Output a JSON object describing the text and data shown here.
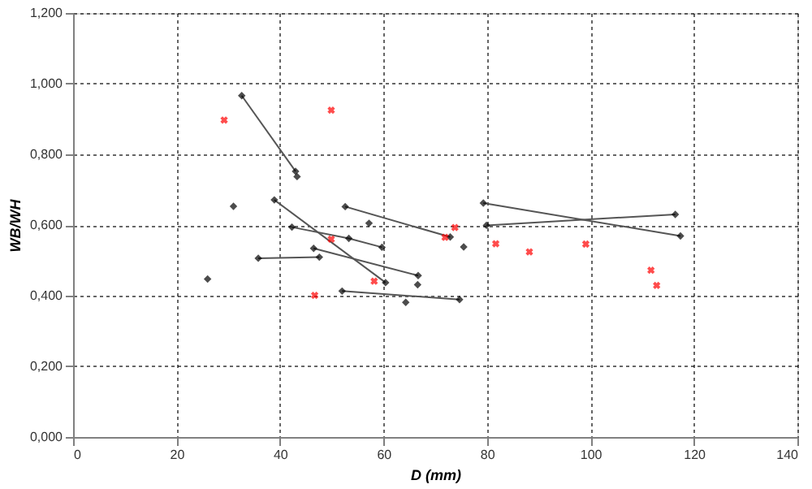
{
  "chart_data": {
    "type": "scatter",
    "xlabel": "D (mm)",
    "ylabel": "WB/WH",
    "xlim": [
      0,
      140
    ],
    "xticks": [
      0,
      20,
      40,
      60,
      80,
      100,
      120,
      140
    ],
    "ylim": [
      0,
      1.2
    ],
    "yticks": [
      {
        "value": 0,
        "label": "0,000"
      },
      {
        "value": 0.2,
        "label": "0,200"
      },
      {
        "value": 0.4,
        "label": "0,400"
      },
      {
        "value": 0.6,
        "label": "0,600"
      },
      {
        "value": 0.8,
        "label": "0,800"
      },
      {
        "value": 1.0,
        "label": "1,000"
      },
      {
        "value": 1.2,
        "label": "1,200"
      }
    ],
    "grid": true,
    "series": [
      {
        "type": "line",
        "color": "#555555",
        "line_style": "solid",
        "x": [
          32.6,
          43.0
        ],
        "values": [
          0.966,
          0.752
        ]
      },
      {
        "type": "line",
        "color": "#555555",
        "line_style": "solid",
        "x": [
          38.9,
          60.4
        ],
        "values": [
          0.671,
          0.437
        ]
      },
      {
        "type": "line",
        "color": "#555555",
        "line_style": "solid",
        "x": [
          42.3,
          53.3,
          59.7
        ],
        "values": [
          0.594,
          0.562,
          0.537
        ]
      },
      {
        "type": "line",
        "color": "#555555",
        "line_style": "solid",
        "x": [
          35.8,
          47.6
        ],
        "values": [
          0.506,
          0.509
        ]
      },
      {
        "type": "line",
        "color": "#555555",
        "line_style": "solid",
        "x": [
          46.5,
          66.7
        ],
        "values": [
          0.534,
          0.457
        ]
      },
      {
        "type": "line",
        "color": "#555555",
        "line_style": "solid",
        "x": [
          52.6,
          72.9
        ],
        "values": [
          0.652,
          0.566
        ]
      },
      {
        "type": "line",
        "color": "#555555",
        "line_style": "solid",
        "x": [
          52.0,
          74.7
        ],
        "values": [
          0.413,
          0.389
        ]
      },
      {
        "type": "line",
        "color": "#555555",
        "line_style": "solid",
        "x": [
          79.3,
          117.4
        ],
        "values": [
          0.662,
          0.569
        ]
      },
      {
        "type": "line",
        "color": "#555555",
        "line_style": "solid",
        "x": [
          79.9,
          116.4
        ],
        "values": [
          0.599,
          0.63
        ]
      },
      {
        "color": "#000000",
        "marker": "diamond",
        "x": [
          32.6,
          43.0,
          43.3,
          31.0,
          26.0,
          38.9,
          60.4,
          42.3,
          53.3,
          59.7,
          35.8,
          47.6,
          46.5,
          52.6,
          57.2,
          52.0,
          64.3,
          66.7,
          66.6,
          72.9,
          75.5,
          74.7,
          79.3,
          79.9,
          116.4,
          117.4
        ],
        "values": [
          0.966,
          0.752,
          0.737,
          0.653,
          0.447,
          0.671,
          0.437,
          0.594,
          0.562,
          0.537,
          0.506,
          0.509,
          0.534,
          0.652,
          0.605,
          0.413,
          0.381,
          0.457,
          0.431,
          0.566,
          0.538,
          0.389,
          0.662,
          0.599,
          0.63,
          0.569
        ]
      },
      {
        "color": "#ff0000",
        "marker": "cross",
        "x": [
          29.2,
          49.9,
          49.9,
          46.7,
          58.2,
          71.9,
          73.8,
          81.7,
          88.2,
          99.1,
          111.7,
          112.8
        ],
        "values": [
          0.897,
          0.925,
          0.56,
          0.401,
          0.441,
          0.565,
          0.593,
          0.547,
          0.524,
          0.546,
          0.472,
          0.429
        ]
      }
    ]
  }
}
